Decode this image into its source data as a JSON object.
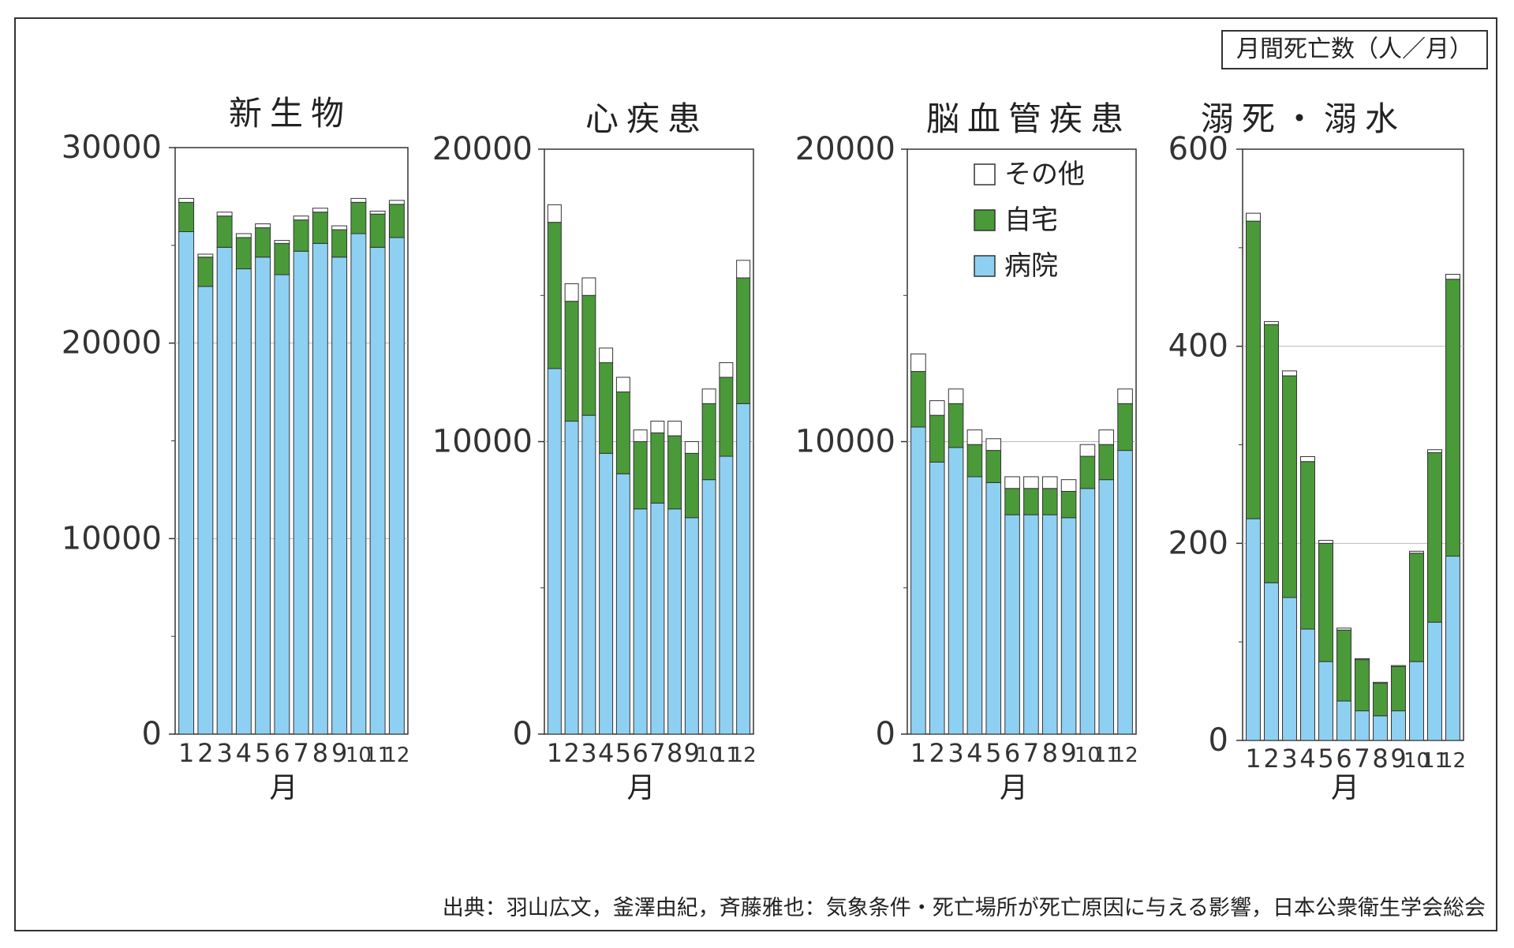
{
  "unit_label": "月間死亡数（人／月）",
  "source": "出典：羽山広文，釜澤由紀，斉藤雅也：気象条件・死亡場所が死亡原因に与える影響，日本公衆衛生学会総会",
  "colors": {
    "その他": "#ffffff",
    "自宅": "#4a9a3a",
    "病院": "#8ed0f2",
    "stroke": "#333333",
    "grid": "#bbbbbb"
  },
  "legend": [
    {
      "label": "その他",
      "color_key": "その他"
    },
    {
      "label": "自宅",
      "color_key": "自宅"
    },
    {
      "label": "病院",
      "color_key": "病院"
    }
  ],
  "chart_data": [
    {
      "type": "bar",
      "stacked": true,
      "title": "新生物",
      "xlabel": "月",
      "categories": [
        "1",
        "2",
        "3",
        "4",
        "5",
        "6",
        "7",
        "8",
        "9",
        "10",
        "11",
        "12"
      ],
      "ylim": [
        0,
        30000
      ],
      "yticks": [
        "0",
        "10000",
        "20000",
        "30000"
      ],
      "series": [
        {
          "name": "病院",
          "values": [
            25700,
            22900,
            24900,
            23800,
            24400,
            23500,
            24700,
            25100,
            24400,
            25600,
            24900,
            25400
          ]
        },
        {
          "name": "自宅",
          "values": [
            1500,
            1500,
            1600,
            1600,
            1500,
            1600,
            1600,
            1600,
            1400,
            1600,
            1700,
            1700
          ]
        },
        {
          "name": "その他",
          "values": [
            200,
            150,
            200,
            200,
            200,
            150,
            200,
            200,
            200,
            200,
            150,
            200
          ]
        }
      ]
    },
    {
      "type": "bar",
      "stacked": true,
      "title": "心疾患",
      "xlabel": "月",
      "categories": [
        "1",
        "2",
        "3",
        "4",
        "5",
        "6",
        "7",
        "8",
        "9",
        "10",
        "11",
        "12"
      ],
      "ylim": [
        0,
        20000
      ],
      "yticks": [
        "0",
        "10000",
        "20000"
      ],
      "series": [
        {
          "name": "病院",
          "values": [
            12500,
            10700,
            10900,
            9600,
            8900,
            7700,
            7900,
            7700,
            7400,
            8700,
            9500,
            11300
          ]
        },
        {
          "name": "自宅",
          "values": [
            5000,
            4100,
            4100,
            3100,
            2800,
            2300,
            2400,
            2500,
            2200,
            2600,
            2700,
            4300
          ]
        },
        {
          "name": "その他",
          "values": [
            600,
            600,
            600,
            500,
            500,
            400,
            400,
            500,
            400,
            500,
            500,
            600
          ]
        }
      ]
    },
    {
      "type": "bar",
      "stacked": true,
      "title": "脳血管疾患",
      "xlabel": "月",
      "categories": [
        "1",
        "2",
        "3",
        "4",
        "5",
        "6",
        "7",
        "8",
        "9",
        "10",
        "11",
        "12"
      ],
      "ylim": [
        0,
        20000
      ],
      "yticks": [
        "0",
        "10000",
        "20000"
      ],
      "series": [
        {
          "name": "病院",
          "values": [
            10500,
            9300,
            9800,
            8800,
            8600,
            7500,
            7500,
            7500,
            7400,
            8400,
            8700,
            9700
          ]
        },
        {
          "name": "自宅",
          "values": [
            1900,
            1600,
            1500,
            1100,
            1100,
            900,
            900,
            900,
            900,
            1100,
            1200,
            1600
          ]
        },
        {
          "name": "その他",
          "values": [
            600,
            500,
            500,
            500,
            400,
            400,
            400,
            400,
            400,
            400,
            500,
            500
          ]
        }
      ]
    },
    {
      "type": "bar",
      "stacked": true,
      "title": "溺死・溺水",
      "xlabel": "月",
      "categories": [
        "1",
        "2",
        "3",
        "4",
        "5",
        "6",
        "7",
        "8",
        "9",
        "10",
        "11",
        "12"
      ],
      "ylim": [
        0,
        600
      ],
      "yticks": [
        "0",
        "200",
        "400",
        "600"
      ],
      "series": [
        {
          "name": "病院",
          "values": [
            225,
            160,
            145,
            113,
            80,
            40,
            30,
            25,
            30,
            80,
            120,
            187
          ]
        },
        {
          "name": "自宅",
          "values": [
            302,
            262,
            225,
            170,
            120,
            72,
            52,
            33,
            45,
            110,
            172,
            281
          ]
        },
        {
          "name": "その他",
          "values": [
            8,
            3,
            5,
            5,
            3,
            2,
            1,
            1,
            1,
            2,
            3,
            5
          ]
        }
      ]
    }
  ]
}
